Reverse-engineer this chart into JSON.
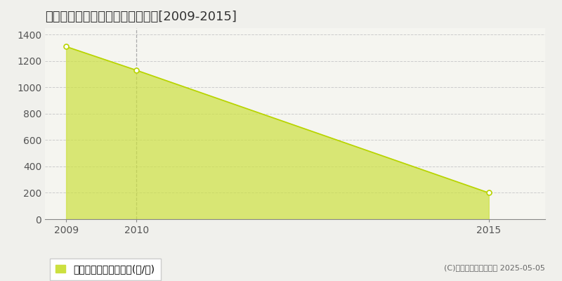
{
  "title": "磯谷郡蘭越町相生　林地価格推移[2009-2015]",
  "years": [
    2009,
    2010,
    2015
  ],
  "values": [
    1310,
    1130,
    200
  ],
  "line_color": "#b8d400",
  "fill_color": "#cce040",
  "fill_alpha": 0.7,
  "marker_face": "#ffffff",
  "vline_x": 2010,
  "vline_color": "#aaaaaa",
  "xlim": [
    2008.7,
    2015.8
  ],
  "ylim": [
    0,
    1450
  ],
  "yticks": [
    0,
    200,
    400,
    600,
    800,
    1000,
    1200,
    1400
  ],
  "xticks": [
    2009,
    2010,
    2015
  ],
  "grid_color": "#cccccc",
  "plot_bg_color": "#f5f5f0",
  "fig_bg_color": "#f0f0ec",
  "legend_label": "林地価格　平均坪単価(円/坪)",
  "copyright": "(C)土地価格ドットコム 2025-05-05",
  "title_fontsize": 13,
  "axis_fontsize": 10,
  "legend_fontsize": 10
}
